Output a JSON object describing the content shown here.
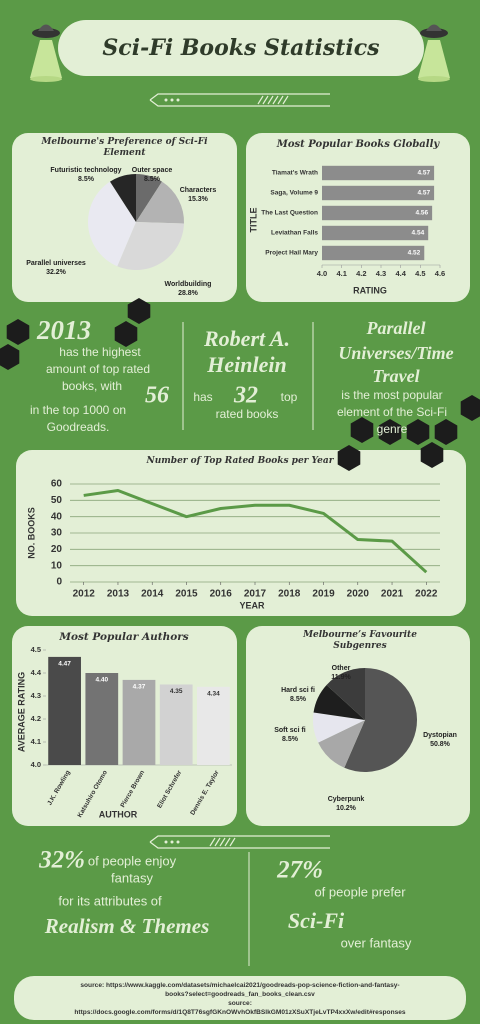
{
  "header": {
    "title": "Sci-Fi Books Statistics"
  },
  "chart_data": [
    {
      "type": "pie",
      "title": "Melbourne's Preference of Sci-Fi Element",
      "categories": [
        "Outer space",
        "Characters",
        "Worldbuilding",
        "Parallel universes",
        "Futuristic technology"
      ],
      "values": [
        8.5,
        15.3,
        28.8,
        32.2,
        8.5
      ],
      "value_labels": [
        "8.5%",
        "15.3%",
        "28.8%",
        "32.2%",
        "8.5%"
      ],
      "colors": [
        "#6b6b6b",
        "#b3b3b3",
        "#d9d9d9",
        "#e9e9f1",
        "#262626"
      ]
    },
    {
      "type": "bar",
      "orientation": "horizontal",
      "title": "Most Popular Books Globally",
      "x_label": "RATING",
      "y_label": "TITLE",
      "categories": [
        "Tiamat's Wrath",
        "Saga, Volume 9",
        "The Last Question",
        "Leviathan Falls",
        "Project Hail Mary"
      ],
      "values": [
        4.57,
        4.57,
        4.56,
        4.54,
        4.52
      ],
      "color": "#8c8c8c",
      "xlim": [
        4.0,
        4.6
      ],
      "xticks": [
        {
          "value": 4.0,
          "label": "4.0"
        },
        4.1,
        4.2,
        4.3,
        4.4,
        4.5,
        4.6
      ]
    },
    {
      "type": "line",
      "title": "Number of Top Rated Books per Year",
      "x_label": "YEAR",
      "y_label": "NO. BOOKS",
      "x": [
        2012,
        2013,
        2014,
        2015,
        2016,
        2017,
        2018,
        2019,
        2020,
        2021,
        2022
      ],
      "values": [
        53,
        56,
        48,
        40,
        45,
        47,
        47,
        42,
        26,
        25,
        6
      ],
      "color": "#5b9a47",
      "xlim": [
        2011.6,
        2022.4
      ],
      "xticks": [
        2012,
        2013,
        2014,
        2015,
        2016,
        2017,
        2018,
        2019,
        2020,
        2021,
        2022
      ],
      "ylim": [
        0,
        60
      ],
      "yticks": [
        0,
        10,
        20,
        30,
        40,
        50,
        60
      ],
      "grid": true
    },
    {
      "type": "bar",
      "title": "Most Popular Authors",
      "x_label": "AUTHOR",
      "y_label": "AVERAGE RATING",
      "categories": [
        "J.K. Rowling",
        "Katsuhiro Otomo",
        "Pierce Brown",
        "Eliot Schrefer",
        "Dennis E. Taylor"
      ],
      "values": [
        4.47,
        4.4,
        4.37,
        4.35,
        4.34
      ],
      "value_labels": [
        "4.47",
        "4.40",
        "4.37",
        "4.35",
        "4.34"
      ],
      "colors": [
        "#4a4a4a",
        "#737373",
        "#a9a9a9",
        "#d2d2d2",
        "#e8e8e8"
      ],
      "ylim": [
        4.0,
        4.5
      ],
      "yticks": [
        {
          "value": 4.0,
          "label": "4.0"
        },
        4.1,
        4.2,
        4.3,
        4.4,
        4.5
      ]
    },
    {
      "type": "pie",
      "title": "Melbourne’s Favourite Subgenres",
      "categories": [
        "Dystopian",
        "Cyberpunk",
        "Soft sci fi",
        "Hard sci fi",
        "Other"
      ],
      "values": [
        50.8,
        10.2,
        8.5,
        8.5,
        11.9
      ],
      "value_labels": [
        "50.8%",
        "10.2%",
        "8.5%",
        "8.5%",
        "11.9%"
      ],
      "colors": [
        "#555555",
        "#a8a8a8",
        "#e6e6ee",
        "#1e1e1e",
        "#3c3c3c"
      ]
    }
  ],
  "facts": [
    {
      "headline": "2013",
      "lines": [
        "has the highest",
        "amount of top rated",
        "books, with"
      ],
      "number": "56",
      "tail": [
        "in the top 1000 on",
        "Goodreads."
      ]
    },
    {
      "headline": [
        "Robert A.",
        "Heinlein"
      ],
      "before": "has",
      "number": "32",
      "after": "top",
      "tail": "rated books"
    },
    {
      "headline": [
        "Parallel",
        "Universes/Time",
        "Travel"
      ],
      "tail": [
        "is the most popular",
        "element of the Sci-Fi",
        "genre"
      ]
    },
    {
      "number": "32%",
      "lines": [
        "of people enjoy",
        "fantasy"
      ],
      "tail": "for its attributes of",
      "headline": "Realism & Themes"
    },
    {
      "number": "27%",
      "lines": [
        "of people prefer"
      ],
      "headline": "Sci-Fi",
      "tail": "over fantasy"
    }
  ],
  "footer": {
    "lines": [
      "source: https://www.kaggle.com/datasets/michaelcai2021/goodreads-pop-science-fiction-and-fantasy-",
      "books?select=goodreads_fan_books_clean.csv",
      "source:",
      "https://docs.google.com/forms/d/1Q8T76sgfGKnOWvhOkfBSlkGM01zXSuXTjeLvTP4xxXw/edit#responses"
    ]
  }
}
